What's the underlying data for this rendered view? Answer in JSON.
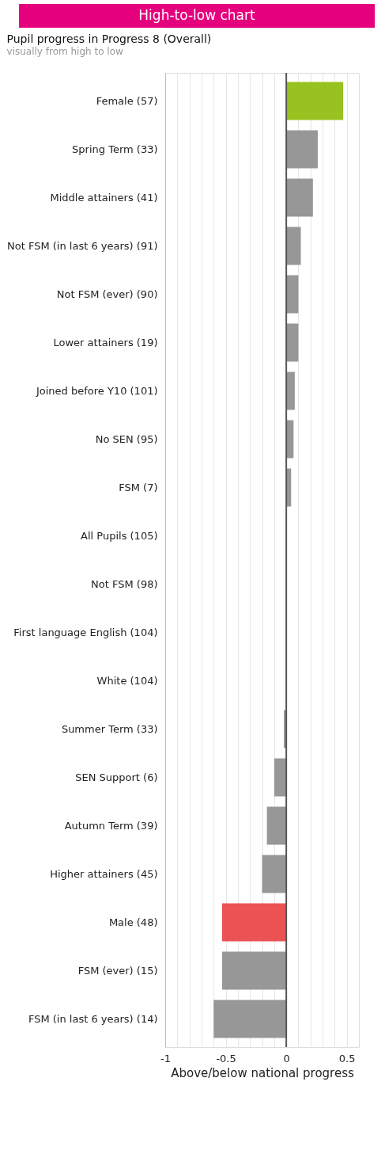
{
  "chart_data": {
    "type": "bar",
    "orientation": "horizontal",
    "title": "High-to-low chart",
    "subtitle": "Pupil progress in Progress 8 (Overall)",
    "annotations": [
      "visually from high to low"
    ],
    "xlabel": "Above/below national progress",
    "categories": [
      "Female (57)",
      "Spring Term (33)",
      "Middle attainers (41)",
      "Not FSM (in last 6 years) (91)",
      "Not FSM (ever) (90)",
      "Lower attainers (19)",
      "Joined before Y10 (101)",
      "No SEN (95)",
      "FSM (7)",
      "All Pupils (105)",
      "Not FSM (98)",
      "First language English (104)",
      "White (104)",
      "Summer Term (33)",
      "SEN Support (6)",
      "Autumn Term (39)",
      "Higher attainers (45)",
      "Male (48)",
      "FSM (ever) (15)",
      "FSM (in last 6 years) (14)"
    ],
    "values": [
      0.47,
      0.26,
      0.22,
      0.12,
      0.1,
      0.1,
      0.07,
      0.06,
      0.04,
      0,
      0,
      0,
      0,
      -0.02,
      -0.1,
      -0.16,
      -0.2,
      -0.53,
      -0.53,
      -0.6
    ],
    "colors": [
      "#97c21f",
      "#979797",
      "#979797",
      "#979797",
      "#979797",
      "#979797",
      "#979797",
      "#979797",
      "#979797",
      "#979797",
      "#979797",
      "#979797",
      "#979797",
      "#979797",
      "#979797",
      "#979797",
      "#979797",
      "#eb5254",
      "#979797",
      "#979797"
    ],
    "xlim": [
      -1,
      0.6
    ],
    "xticks": [
      -1,
      {
        "value": -0.9,
        "label": null
      },
      {
        "value": -0.8,
        "label": null
      },
      {
        "value": -0.7,
        "label": null
      },
      {
        "value": -0.6,
        "label": null
      },
      -0.5,
      {
        "value": -0.4,
        "label": null
      },
      {
        "value": -0.3,
        "label": null
      },
      {
        "value": -0.2,
        "label": null
      },
      {
        "value": -0.1,
        "label": null
      },
      0,
      {
        "value": 0.1,
        "label": null
      },
      {
        "value": 0.2,
        "label": null
      },
      {
        "value": 0.3,
        "label": null
      },
      {
        "value": 0.4,
        "label": null
      },
      0.5
    ],
    "grid": "x",
    "legend": false,
    "ref_lines": [
      {
        "axis": "x",
        "value": 0,
        "label": null,
        "color": "#555555"
      }
    ]
  }
}
